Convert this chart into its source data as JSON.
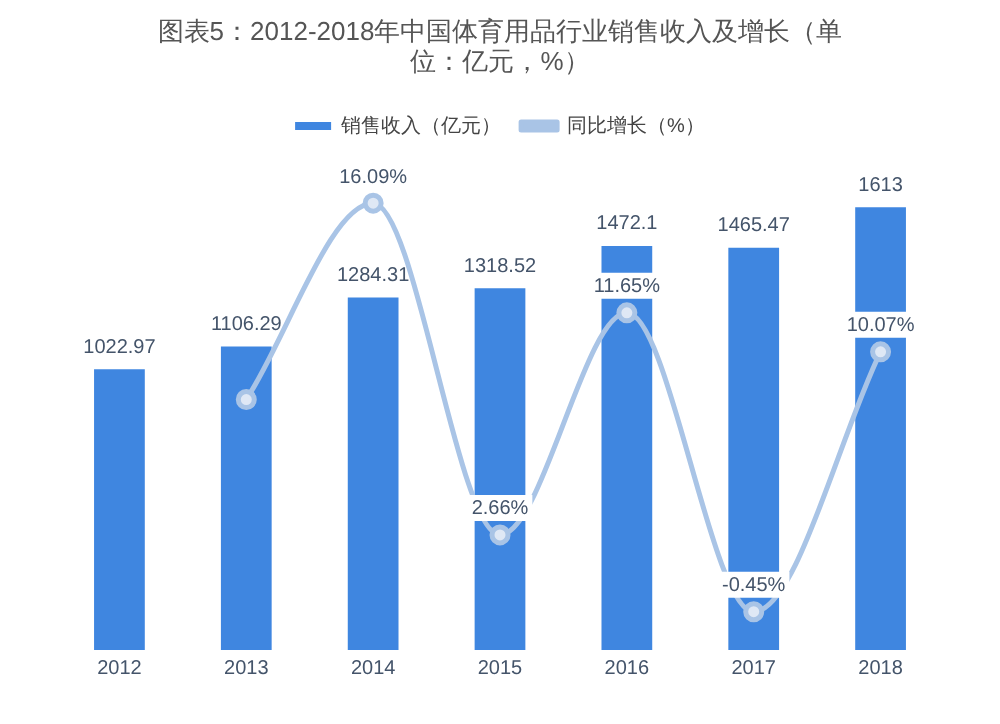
{
  "chart_data": {
    "type": "bar",
    "title": "图表5：2012-2018年中国体育用品行业销售收入及增长（单位：亿元，%）",
    "categories": [
      "2012",
      "2013",
      "2014",
      "2015",
      "2016",
      "2017",
      "2018"
    ],
    "series": [
      {
        "name": "销售收入（亿元）",
        "color": "#3f86e0",
        "values": [
          1022.97,
          1106.29,
          1284.31,
          1318.52,
          1472.1,
          1465.47,
          1613
        ]
      },
      {
        "name": "同比增长（%）",
        "type": "line",
        "axis": "y2",
        "color": "#a9c4e6",
        "values": [
          null,
          8.14,
          16.09,
          2.66,
          11.65,
          -0.45,
          10.07
        ],
        "value_labels": [
          null,
          null,
          "16.09%",
          "2.66%",
          "11.65%",
          "-0.45%",
          "10.07%"
        ]
      }
    ],
    "tick_labels": "x",
    "grid": false,
    "legend": "top",
    "marker": "circle",
    "data_labels": true
  }
}
